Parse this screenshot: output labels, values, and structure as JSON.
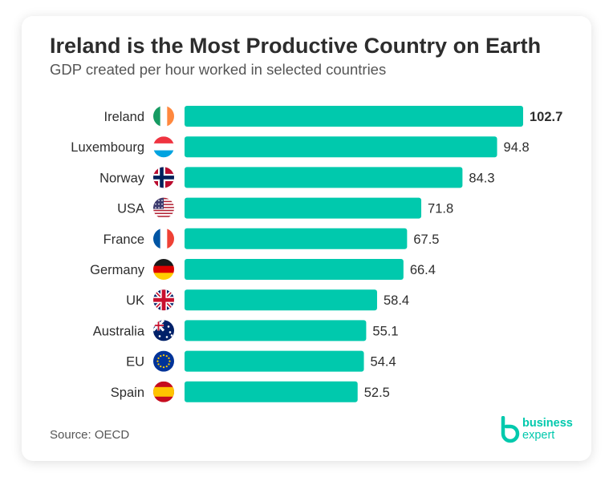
{
  "title": "Ireland is the Most Productive Country on Earth",
  "subtitle": "GDP created per hour worked in selected countries",
  "source": "Source: OECD",
  "brand": {
    "line1": "business",
    "line2": "expert"
  },
  "colors": {
    "bar": "#00c9ad",
    "label": "#2d2d2d",
    "accent": "#00c9ad"
  },
  "chart_data": {
    "type": "bar",
    "orientation": "horizontal",
    "title": "Ireland is the Most Productive Country on Earth",
    "subtitle": "GDP created per hour worked in selected countries",
    "categories": [
      "Ireland",
      "Luxembourg",
      "Norway",
      "USA",
      "France",
      "Germany",
      "UK",
      "Australia",
      "EU",
      "Spain"
    ],
    "values": [
      102.7,
      94.8,
      84.3,
      71.8,
      67.5,
      66.4,
      58.4,
      55.1,
      54.4,
      52.5
    ],
    "value_labels": [
      "102.7",
      "94.8",
      "84.3",
      "71.8",
      "67.5",
      "66.4",
      "58.4",
      "55.1",
      "54.4",
      "52.5"
    ],
    "flag_icons": [
      "ireland-flag-icon",
      "luxembourg-flag-icon",
      "norway-flag-icon",
      "usa-flag-icon",
      "france-flag-icon",
      "germany-flag-icon",
      "uk-flag-icon",
      "australia-flag-icon",
      "eu-flag-icon",
      "spain-flag-icon"
    ],
    "highlight_index": 0,
    "xlabel": "",
    "ylabel": "",
    "grid": false,
    "legend": "none"
  }
}
